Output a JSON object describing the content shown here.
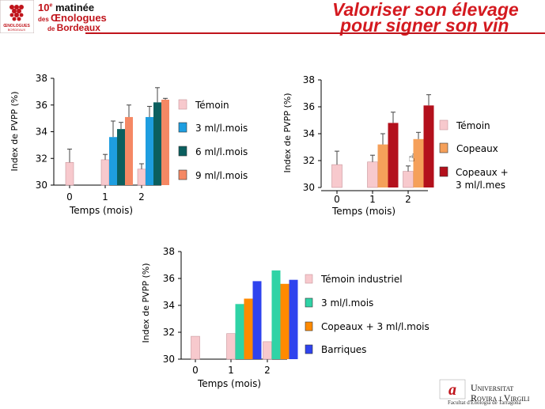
{
  "header": {
    "event_line1_num": "10",
    "event_line1_sup": "e",
    "event_line1_rest": " matinée",
    "event_line2_prefix": "des ",
    "event_line2_main": "Œnologues",
    "event_line3_prefix": "de ",
    "event_line3_main": "Bordeaux",
    "logo_caption_1": "ŒNOLOGUES",
    "logo_caption_2": "BORDEAUX",
    "title_line1": "Valoriser son élevage",
    "title_line2": "pour signer son vin"
  },
  "footer": {
    "university_line1": "Universitat",
    "university_line2": "Rovira i Virgili",
    "faculty": "Facultat d'Enologia de Tarragona"
  },
  "colors": {
    "brand_red": "#d4191f",
    "temoin": "#f7c9cd",
    "ml3_blue": "#1e9ee0",
    "ml6_teal": "#0b5f5f",
    "ml9_salmon": "#f58864",
    "copeaux_orange": "#f5a05a",
    "copeaux_ml_darkred": "#b3101c",
    "teal3": "#2fd3a6",
    "orange_cop": "#ff8a00",
    "barriques_blue": "#2f43ee"
  },
  "chart_data": [
    {
      "type": "bar",
      "title": "",
      "ylabel": "Index de PVPP (%)",
      "xlabel": "Temps (mois)",
      "ylim": [
        30,
        38
      ],
      "yticks": [
        "30",
        "32",
        "34",
        "36",
        "38"
      ],
      "categories": [
        "0",
        "1",
        "2"
      ],
      "series": [
        {
          "name": "Témoin",
          "color": "#f7c9cd",
          "values": [
            31.7,
            31.9,
            31.2
          ],
          "errors": [
            1.0,
            0.4,
            0.4
          ]
        },
        {
          "name": "3 ml/l.mois",
          "color": "#1e9ee0",
          "values": [
            null,
            33.6,
            35.1
          ],
          "errors": [
            0,
            1.2,
            0.8
          ]
        },
        {
          "name": "6 ml/l.mois",
          "color": "#0b5f5f",
          "values": [
            null,
            34.2,
            36.2
          ],
          "errors": [
            0,
            0.5,
            1.1
          ]
        },
        {
          "name": "9 ml/l.mois",
          "color": "#f58864",
          "values": [
            null,
            35.1,
            36.4
          ],
          "errors": [
            0,
            0.9,
            0.1
          ]
        }
      ]
    },
    {
      "type": "bar",
      "title": "",
      "ylabel": "Index de PVPP (%)",
      "xlabel": "Temps (mois)",
      "ylim": [
        30,
        38
      ],
      "yticks": [
        "30",
        "32",
        "34",
        "36",
        "38"
      ],
      "categories": [
        "0",
        "1",
        "2"
      ],
      "series": [
        {
          "name": "Témoin",
          "color": "#f7c9cd",
          "values": [
            31.7,
            31.9,
            31.2
          ],
          "errors": [
            1.0,
            0.5,
            0.4
          ]
        },
        {
          "name": "Copeaux",
          "color": "#f5a05a",
          "values": [
            null,
            33.2,
            33.6
          ],
          "errors": [
            0,
            0.8,
            0.5
          ]
        },
        {
          "name": "Copeaux + 3 ml/l.mes",
          "color": "#b3101c",
          "values": [
            null,
            34.8,
            36.1
          ],
          "errors": [
            0,
            0.8,
            0.8
          ]
        }
      ]
    },
    {
      "type": "bar",
      "title": "",
      "ylabel": "Index de PVPP (%)",
      "xlabel": "Temps (mois)",
      "ylim": [
        30,
        38
      ],
      "yticks": [
        "30",
        "32",
        "34",
        "36",
        "38"
      ],
      "categories": [
        "0",
        "1",
        "2"
      ],
      "series": [
        {
          "name": "Témoin industriel",
          "color": "#f7c9cd",
          "values": [
            31.7,
            31.9,
            31.3
          ],
          "errors": [
            0,
            0,
            0
          ]
        },
        {
          "name": "3 ml/l.mois",
          "color": "#2fd3a6",
          "values": [
            null,
            34.1,
            36.6
          ],
          "errors": [
            0,
            0,
            0
          ]
        },
        {
          "name": "Copeaux + 3 ml/l.mois",
          "color": "#ff8a00",
          "values": [
            null,
            34.5,
            35.6
          ],
          "errors": [
            0,
            0,
            0
          ]
        },
        {
          "name": "Barriques",
          "color": "#2f43ee",
          "values": [
            null,
            35.8,
            35.9
          ],
          "errors": [
            0,
            0,
            0
          ]
        }
      ]
    }
  ]
}
